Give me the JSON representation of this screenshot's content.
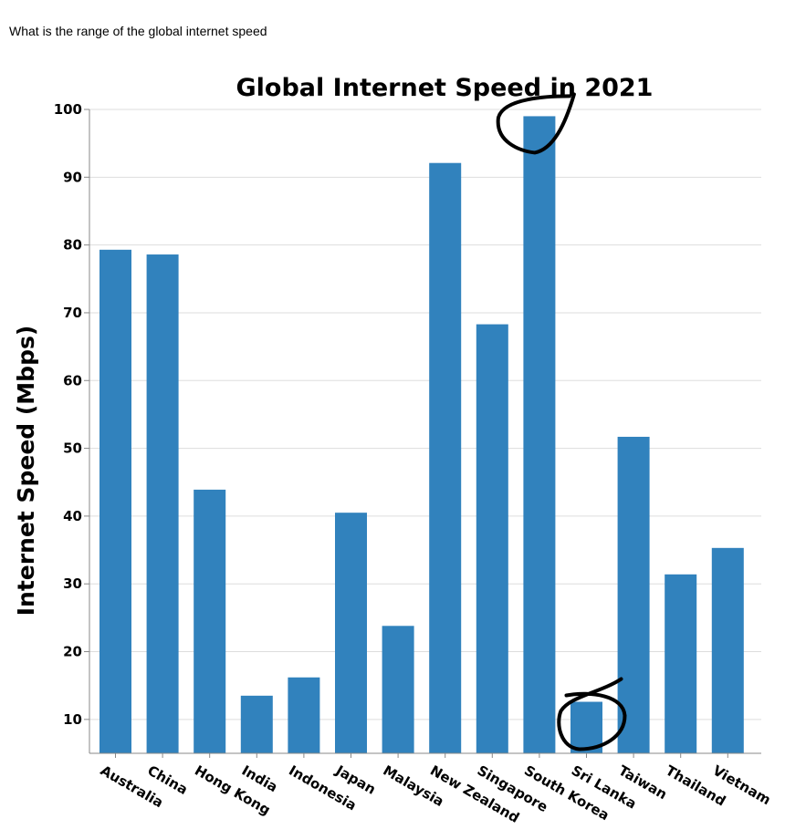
{
  "question": "What is the range of the global internet speed",
  "chart_data": {
    "type": "bar",
    "title": "Global Internet Speed in 2021",
    "xlabel": "",
    "ylabel": "Internet Speed (Mbps)",
    "ylim": [
      5,
      100
    ],
    "yticks": [
      10,
      20,
      30,
      40,
      50,
      60,
      70,
      80,
      90,
      100
    ],
    "grid": true,
    "bar_color": "#3182bd",
    "categories": [
      "Australia",
      "China",
      "Hong Kong",
      "India",
      "Indonesia",
      "Japan",
      "Malaysia",
      "New Zealand",
      "Singapore",
      "South Korea",
      "Sri Lanka",
      "Taiwan",
      "Thailand",
      "Vietnam"
    ],
    "values": [
      79.3,
      78.6,
      43.9,
      13.5,
      16.2,
      40.5,
      23.8,
      92.1,
      68.3,
      99.0,
      12.6,
      51.7,
      31.4,
      35.3
    ],
    "annotations": [
      {
        "type": "hand-drawn circle",
        "category": "South Korea"
      },
      {
        "type": "hand-drawn circle",
        "category": "Sri Lanka"
      }
    ]
  }
}
